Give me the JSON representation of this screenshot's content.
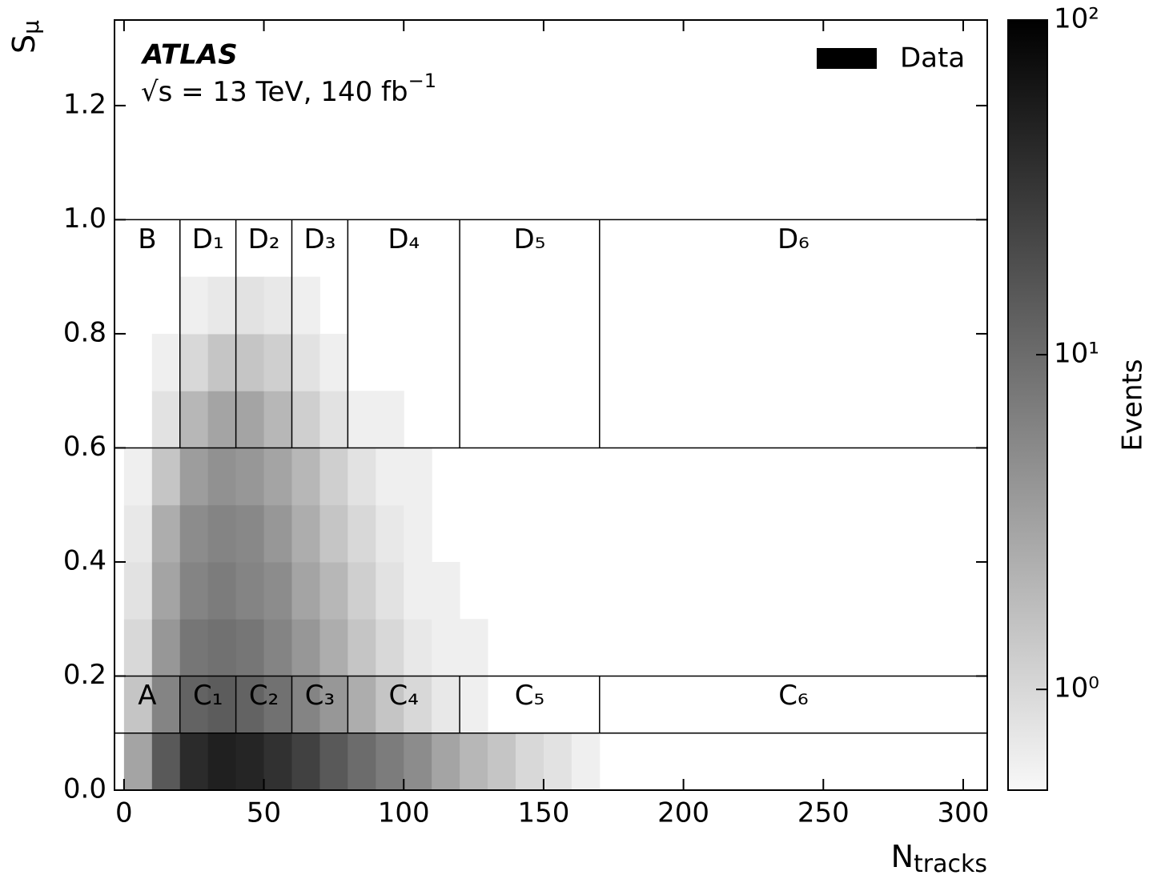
{
  "chart_data": {
    "type": "heatmap",
    "experiment_label": "ATLAS",
    "energy_label": {
      "text": "√s = 13 TeV, 140 fb",
      "sup": "−1"
    },
    "x_label": {
      "text": "N",
      "sub": "tracks"
    },
    "y_label": {
      "text": "S",
      "sub": "μ"
    },
    "colorbar_label": "Events",
    "legend": {
      "name": "Data",
      "color": "#000000",
      "position": "upper right"
    },
    "xlim": [
      -3.4,
      308.6
    ],
    "ylim": [
      0,
      1.35
    ],
    "xticks": [
      0,
      50,
      100,
      150,
      200,
      250,
      300
    ],
    "yticks": [
      {
        "value": 0,
        "label": "0.0"
      },
      {
        "value": 0.2,
        "label": "0.2"
      },
      {
        "value": 0.4,
        "label": "0.4"
      },
      {
        "value": 0.6,
        "label": "0.6"
      },
      {
        "value": 0.8,
        "label": "0.8"
      },
      {
        "value": 1.0,
        "label": "1.0"
      },
      {
        "value": 1.2,
        "label": "1.2"
      }
    ],
    "clim": [
      0.5,
      100
    ],
    "clog": true,
    "cticks": [
      {
        "value": 1,
        "label": "10⁰"
      },
      {
        "value": 10,
        "label": "10¹"
      },
      {
        "value": 100,
        "label": "10²"
      }
    ],
    "colormap": [
      "#f8f8f8",
      "#000000"
    ],
    "x_bins": [
      0,
      10,
      20,
      30,
      40,
      50,
      60,
      70,
      80,
      90,
      100,
      110,
      120,
      130,
      140,
      150,
      160,
      170,
      180
    ],
    "y_bins": [
      0,
      0.1,
      0.2,
      0.3,
      0.4,
      0.5,
      0.6,
      0.7,
      0.8,
      0.9
    ],
    "z": [
      [
        3,
        15,
        40,
        50,
        45,
        35,
        25,
        15,
        10,
        7,
        5,
        3,
        2,
        1.5,
        1,
        0.8,
        0.6,
        null
      ],
      [
        1.5,
        6,
        12,
        14,
        12,
        9,
        6,
        4,
        2.5,
        1.5,
        1,
        0.7,
        0.6,
        null,
        null,
        null,
        null,
        null
      ],
      [
        1,
        4,
        8,
        9,
        8,
        6,
        4,
        2.5,
        1.5,
        1,
        0.7,
        0.6,
        0.6,
        null,
        null,
        null,
        null,
        null
      ],
      [
        0.8,
        3,
        6,
        7,
        6,
        5,
        3,
        2,
        1.2,
        0.8,
        0.6,
        0.6,
        null,
        null,
        null,
        null,
        null,
        null
      ],
      [
        0.7,
        2.5,
        5,
        6,
        5.5,
        4,
        2.5,
        1.5,
        1,
        0.7,
        0.6,
        null,
        null,
        null,
        null,
        null,
        null,
        null
      ],
      [
        0.6,
        1.5,
        3.5,
        4.5,
        4,
        3,
        2,
        1.2,
        0.8,
        0.6,
        0.6,
        null,
        null,
        null,
        null,
        null,
        null,
        null
      ],
      [
        null,
        0.8,
        2,
        3,
        3,
        2,
        1.2,
        0.8,
        0.6,
        0.6,
        null,
        null,
        null,
        null,
        null,
        null,
        null,
        null
      ],
      [
        null,
        0.6,
        1,
        1.5,
        1.5,
        1.2,
        0.8,
        0.6,
        null,
        null,
        null,
        null,
        null,
        null,
        null,
        null,
        null,
        null
      ],
      [
        null,
        null,
        0.6,
        0.7,
        0.8,
        0.7,
        0.6,
        null,
        null,
        null,
        null,
        null,
        null,
        null,
        null,
        null,
        null,
        null
      ]
    ],
    "region_y": [
      0.1,
      0.2,
      0.6,
      1.0
    ],
    "region_x": [
      20,
      40,
      60,
      80,
      120,
      170
    ],
    "upper_regions": [
      "B",
      "D₁",
      "D₂",
      "D₃",
      "D₄",
      "D₅",
      "D₆"
    ],
    "lower_regions": [
      "A",
      "C₁",
      "C₂",
      "C₃",
      "C₄",
      "C₅",
      "C₆"
    ]
  }
}
